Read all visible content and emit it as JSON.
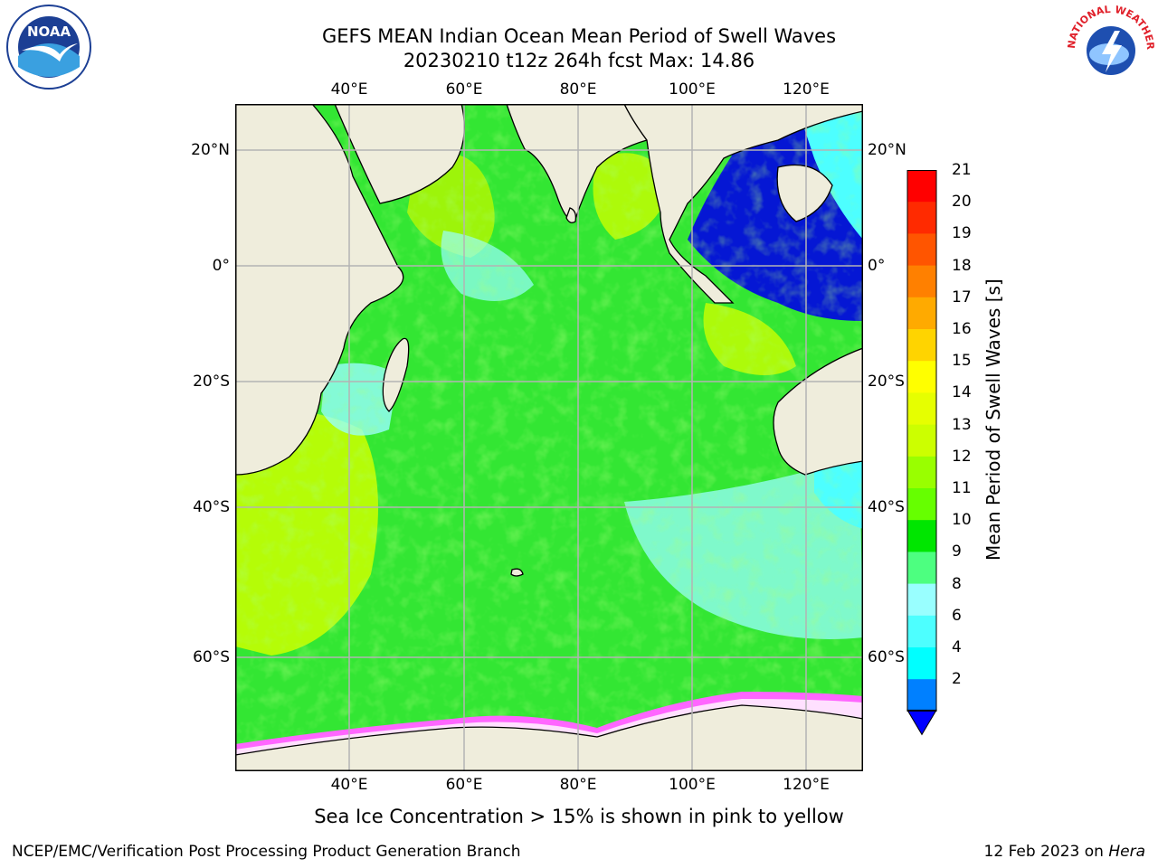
{
  "title": {
    "line1": "GEFS MEAN Indian Ocean Mean Period of Swell Waves",
    "line2": "20230210 t12z 264h fcst   Max: 14.86"
  },
  "map": {
    "lon_ticks": [
      "40°E",
      "60°E",
      "80°E",
      "100°E",
      "120°E"
    ],
    "lat_ticks_left": [
      "20°N",
      "0°",
      "20°S",
      "40°S",
      "60°S"
    ],
    "lat_ticks_right": [
      "20°N",
      "0°",
      "20°S",
      "40°S",
      "60°S"
    ],
    "lon_range": [
      20,
      130
    ],
    "lat_range": [
      -70,
      28
    ],
    "colors": {
      "land": "#efeddc",
      "ocean_main": "#33e633",
      "gridline": "#b3b3b3"
    }
  },
  "colorbar": {
    "label": "Mean Period of Swell Waves [s]",
    "ticks": [
      "21",
      "20",
      "19",
      "18",
      "17",
      "16",
      "15",
      "14",
      "13",
      "12",
      "11",
      "10",
      "9",
      "8",
      "6",
      "4",
      "2"
    ],
    "colors": [
      "#ff0000",
      "#ff2a00",
      "#ff5500",
      "#ff8000",
      "#ffaa00",
      "#ffd400",
      "#ffff00",
      "#e6ff00",
      "#ccff00",
      "#99ff00",
      "#66ff00",
      "#00e600",
      "#4dff80",
      "#99ffff",
      "#4dffff",
      "#00ffff",
      "#0080ff"
    ]
  },
  "caption": "Sea Ice Concentration > 15% is shown in pink to yellow",
  "footer": {
    "left": "NCEP/EMC/Verification Post Processing Product Generation Branch",
    "right_date": "12 Feb 2023 on ",
    "right_host": "Hera"
  },
  "logos": {
    "left": "NOAA",
    "right": "NATIONAL WEATHER SERVICE"
  }
}
